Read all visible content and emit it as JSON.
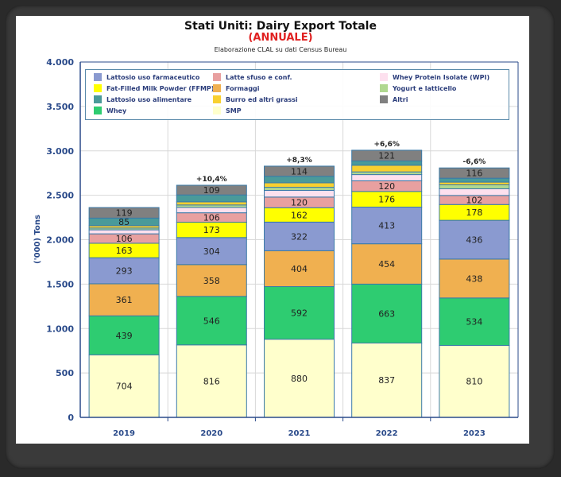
{
  "chart_data": {
    "type": "bar",
    "stacked": true,
    "title": "Stati Uniti: Dairy Export Totale",
    "subtitle": "(ANNUALE)",
    "source_note": "Elaborazione CLAL su dati Census Bureau",
    "xlabel": "",
    "ylabel": "('000) Tons",
    "ylim": [
      0,
      4000
    ],
    "yticks": [
      "0",
      "500",
      "1.000",
      "1.500",
      "2.000",
      "2.500",
      "3.000",
      "3.500",
      "4.000"
    ],
    "ytick_values": [
      0,
      500,
      1000,
      1500,
      2000,
      2500,
      3000,
      3500,
      4000
    ],
    "grid": true,
    "legend_position": "top",
    "categories": [
      "2019",
      "2020",
      "2021",
      "2022",
      "2023"
    ],
    "annotations": [
      "",
      "+10,4%",
      "+8,3%",
      "+6,6%",
      "-6,6%"
    ],
    "series": [
      {
        "name": "SMP",
        "color": "#ffffcc",
        "values": [
          704,
          816,
          880,
          837,
          810
        ],
        "labeled": true
      },
      {
        "name": "Whey",
        "color": "#2ecc71",
        "values": [
          439,
          546,
          592,
          663,
          534
        ],
        "labeled": true
      },
      {
        "name": "Formaggi",
        "color": "#f0b050",
        "values": [
          361,
          358,
          404,
          454,
          438
        ],
        "labeled": true
      },
      {
        "name": "Lattosio uso farmaceutico",
        "color": "#8a9ad0",
        "values": [
          293,
          304,
          322,
          413,
          436
        ],
        "labeled": true
      },
      {
        "name": "Fat-Filled Milk Powder (FFMP)",
        "color": "#ffff00",
        "values": [
          163,
          173,
          162,
          176,
          178
        ],
        "labeled": true
      },
      {
        "name": "Latte sfuso e conf.",
        "color": "#e8a0a0",
        "values": [
          106,
          106,
          120,
          120,
          102
        ],
        "labeled": true
      },
      {
        "name": "Whey Protein Isolate (WPI)",
        "color": "#fde0ee",
        "values": [
          45,
          60,
          75,
          70,
          75
        ],
        "labeled": false
      },
      {
        "name": "Yogurt e latticello",
        "color": "#b0d890",
        "values": [
          20,
          28,
          35,
          30,
          45
        ],
        "labeled": false
      },
      {
        "name": "Burro ed altri grassi",
        "color": "#f8d030",
        "values": [
          27,
          35,
          50,
          75,
          30
        ],
        "labeled": false
      },
      {
        "name": "Lattosio uso alimentare",
        "color": "#4a9a9a",
        "values": [
          85,
          78,
          74,
          48,
          44
        ],
        "labeled_indices": [
          0
        ]
      },
      {
        "name": "Altri",
        "color": "#808080",
        "values": [
          119,
          109,
          114,
          121,
          116
        ],
        "labeled": true
      }
    ]
  },
  "legend": [
    {
      "name": "Lattosio uso farmaceutico",
      "color": "#8a9ad0"
    },
    {
      "name": "Latte sfuso e conf.",
      "color": "#e8a0a0"
    },
    {
      "name": "Whey Protein Isolate (WPI)",
      "color": "#fde0ee"
    },
    {
      "name": "Fat-Filled Milk Powder (FFMP)",
      "color": "#ffff00"
    },
    {
      "name": "Formaggi",
      "color": "#f0b050"
    },
    {
      "name": "Yogurt e latticello",
      "color": "#b0d890"
    },
    {
      "name": "Lattosio uso alimentare",
      "color": "#4a9a9a"
    },
    {
      "name": "Burro ed altri grassi",
      "color": "#f8d030"
    },
    {
      "name": "Altri",
      "color": "#808080"
    },
    {
      "name": "Whey",
      "color": "#2ecc71"
    },
    {
      "name": "SMP",
      "color": "#ffffcc"
    }
  ],
  "colors": {
    "axis": "#2a4a8a",
    "title_accent": "#e02020",
    "grid": "#d8d8d8",
    "bar_border": "#3a7aa8"
  }
}
